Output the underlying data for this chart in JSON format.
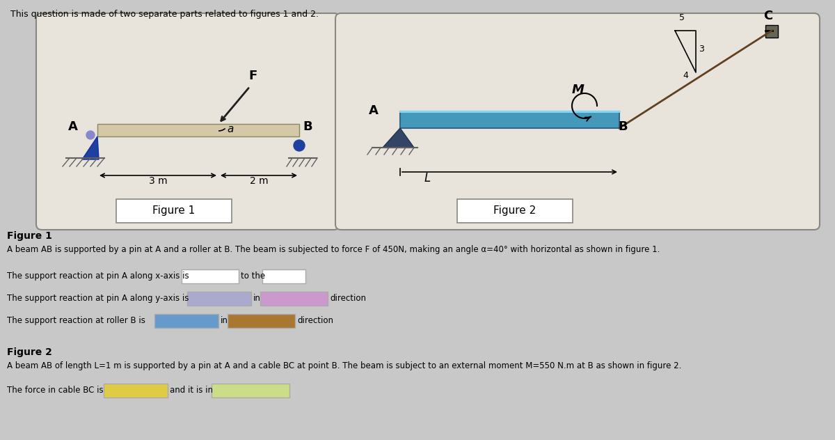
{
  "title_text": "This question is made of two separate parts related to figures 1 and 2.",
  "fig1_label": "Figure 1",
  "fig2_label": "Figure 2",
  "fig1_desc": "A beam AB is supported by a pin at A and a roller at B. The beam is subjected to force F of 450N, making an angle α=40° with horizontal as shown in figure 1.",
  "fig2_desc": "A beam AB of length L=1 m is supported by a pin at A and a cable BC at point B. The beam is subject to an external moment M=550 N.m at B as shown in figure 2.",
  "q1_line1": "The support reaction at pin A along x-axis is",
  "q1_to_the": "to the",
  "q1_line2": "The support reaction at pin A along y-axis is",
  "q1_in": "in",
  "q1_direction": "direction",
  "q1_line3": "The support reaction at roller B is",
  "q1_in2": "in",
  "q1_direction2": "direction",
  "q2_line1": "The force in cable BC is",
  "q2_and_it": "and it is in",
  "bg_color": "#c8c8c8",
  "panel_color": "#d4d0c8",
  "panel1_box": "#e8e4dc",
  "beam_color_fig1": "#d4c8a8",
  "beam_color_fig2": "#5bb8d4",
  "pin_color": "#2040a0",
  "roller_color": "#2040a0",
  "ground_color": "#606060",
  "force_color": "#202020",
  "cable_color": "#604020",
  "answer_box1_color": "#ffffff",
  "answer_box2_color": "#aaaacc",
  "answer_box3_color": "#cc99cc",
  "answer_box4_color": "#6699cc",
  "answer_box5_color": "#aa7733",
  "answer_box6_color": "#ddcc44",
  "answer_box7_color": "#ccdd88"
}
